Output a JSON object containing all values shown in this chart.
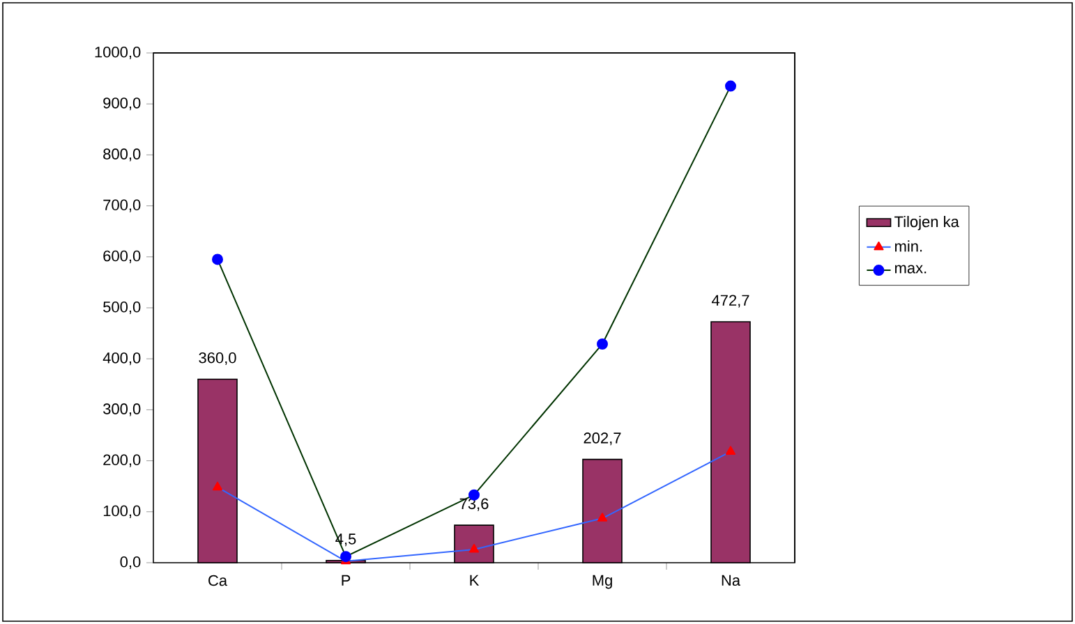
{
  "chart_data": {
    "type": "bar",
    "categories": [
      "Ca",
      "P",
      "K",
      "Mg",
      "Na"
    ],
    "series": [
      {
        "name": "Tilojen ka",
        "color": "#993366",
        "values": [
          360.0,
          4.5,
          73.6,
          202.7,
          472.7
        ],
        "value_labels": [
          "360,0",
          "4,5",
          "73,6",
          "202,7",
          "472,7"
        ]
      },
      {
        "name": "min.",
        "type": "line",
        "color": "#3366ff",
        "marker": "triangle",
        "colors": [
          "#ff0000",
          "#ff0000",
          "#ff0000",
          "#ff0000",
          "#ff0000"
        ],
        "values": [
          148,
          3,
          26,
          87,
          218
        ]
      },
      {
        "name": "max.",
        "type": "line",
        "color": "#003300",
        "marker": "circle",
        "colors": [
          "#0000ff",
          "#0000ff",
          "#0000ff",
          "#0000ff",
          "#0000ff"
        ],
        "values": [
          595,
          12,
          133,
          429,
          935
        ]
      }
    ],
    "ylim": [
      0,
      1000
    ],
    "yticks": [
      {
        "value": 0,
        "label": "0,0"
      },
      {
        "value": 100,
        "label": "100,0"
      },
      {
        "value": 200,
        "label": "200,0"
      },
      {
        "value": 300,
        "label": "300,0"
      },
      {
        "value": 400,
        "label": "400,0"
      },
      {
        "value": 500,
        "label": "500,0"
      },
      {
        "value": 600,
        "label": "600,0"
      },
      {
        "value": 700,
        "label": "700,0"
      },
      {
        "value": 800,
        "label": "800,0"
      },
      {
        "value": 900,
        "label": "900,0"
      },
      {
        "value": 1000,
        "label": "1000,0"
      }
    ],
    "grid": false,
    "legend": "right"
  }
}
